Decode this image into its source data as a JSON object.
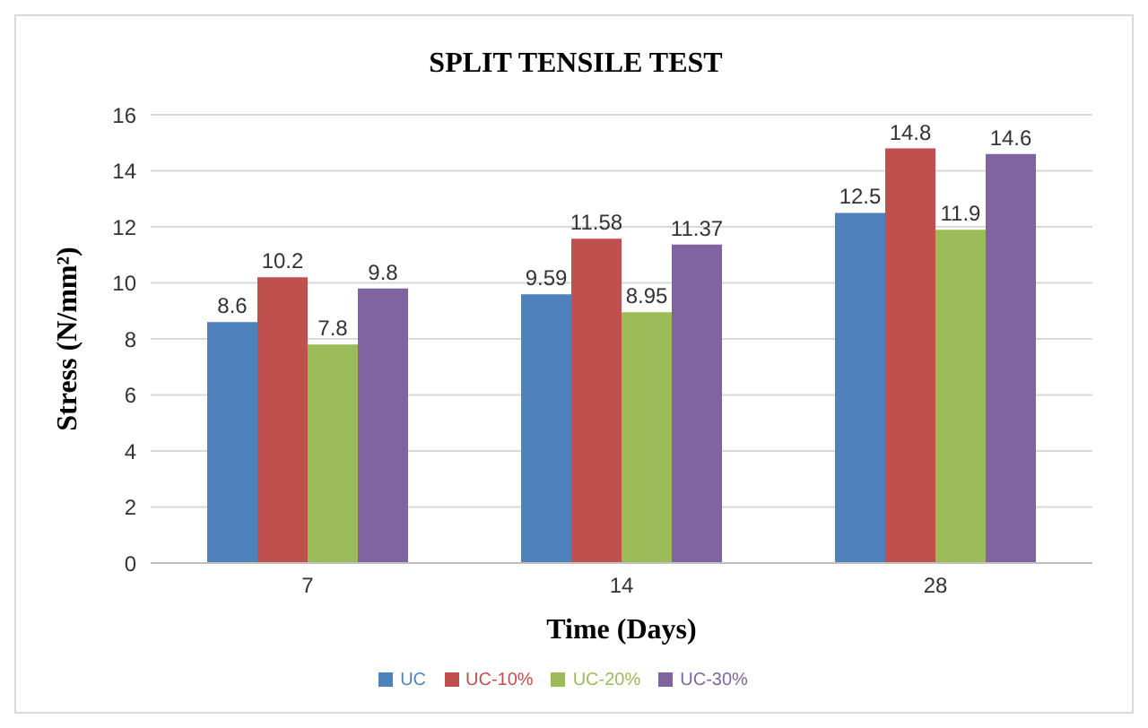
{
  "chart_data": {
    "type": "bar",
    "title": "SPLIT TENSILE TEST",
    "xlabel": "Time (Days)",
    "ylabel": "Stress (N/mm²)",
    "categories": [
      "7",
      "14",
      "28"
    ],
    "series": [
      {
        "name": "UC",
        "color": "#4f81bd",
        "values": [
          8.6,
          9.59,
          12.5
        ]
      },
      {
        "name": "UC-10%",
        "color": "#c0504d",
        "values": [
          10.2,
          11.58,
          14.8
        ]
      },
      {
        "name": "UC-20%",
        "color": "#9bbb59",
        "values": [
          7.8,
          8.95,
          11.9
        ]
      },
      {
        "name": "UC-30%",
        "color": "#8064a2",
        "values": [
          9.8,
          11.37,
          14.6
        ]
      }
    ],
    "ylim": [
      0,
      16
    ],
    "yticks": [
      0,
      2,
      4,
      6,
      8,
      10,
      12,
      14,
      16
    ],
    "grid": "y",
    "legend": "bottom",
    "data_labels": true
  }
}
